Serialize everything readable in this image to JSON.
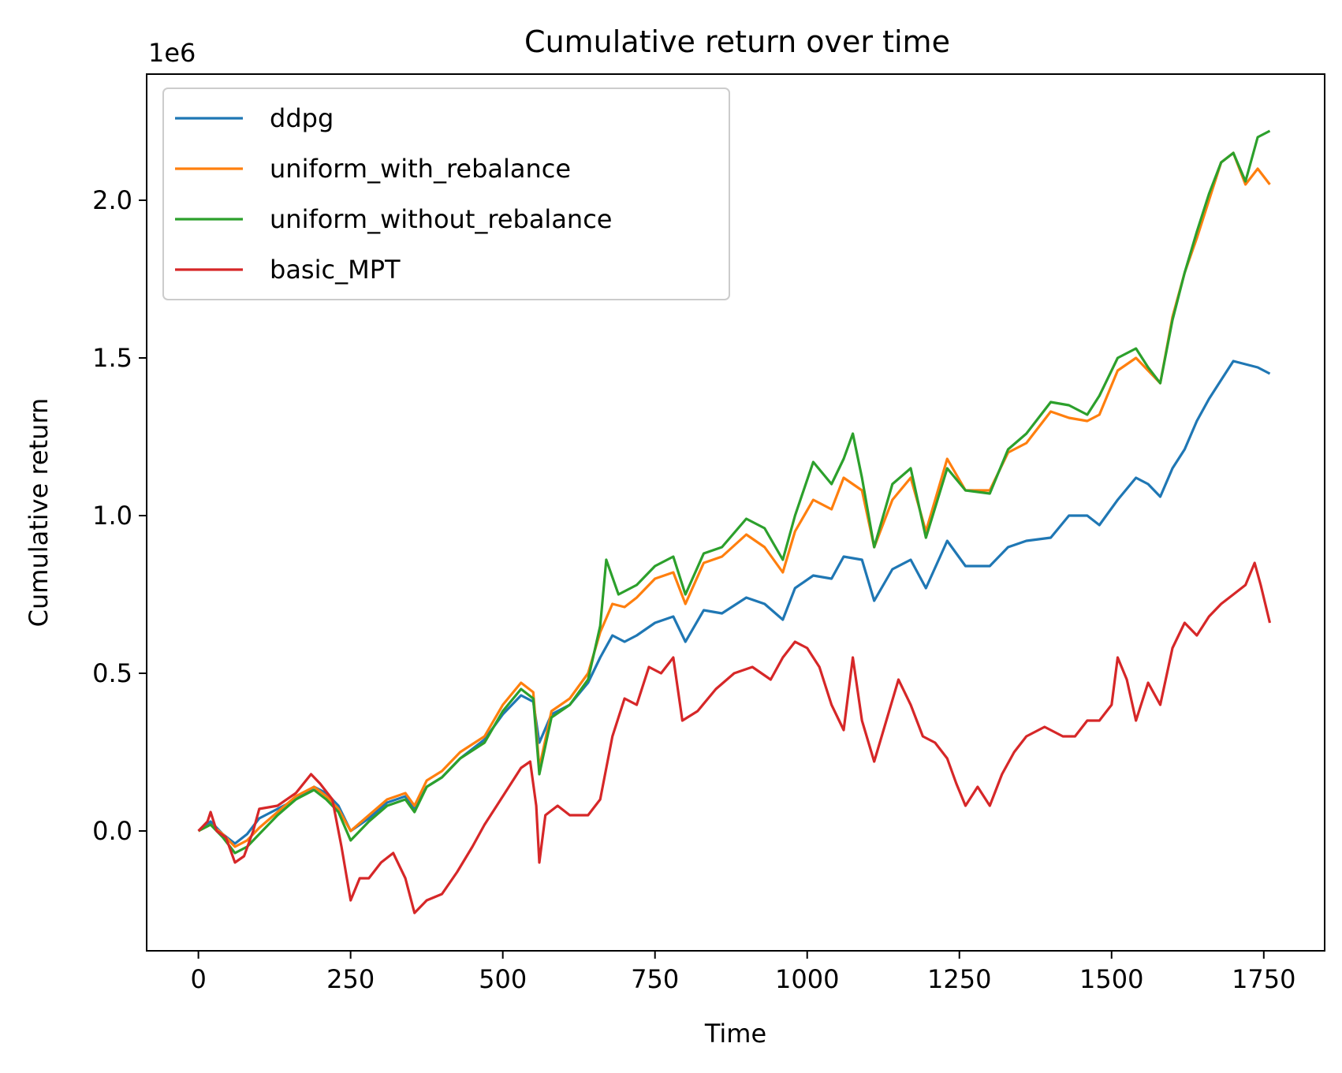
{
  "chart_data": {
    "type": "line",
    "title": "Cumulative return over time",
    "xlabel": "Time",
    "ylabel": "Cumulative return",
    "y_offset_text": "1e6",
    "xlim": [
      -85,
      1850
    ],
    "ylim": [
      -0.38,
      2.4
    ],
    "xticks": [
      0,
      250,
      500,
      750,
      1000,
      1250,
      1500,
      1750
    ],
    "yticks": [
      0.0,
      0.5,
      1.0,
      1.5,
      2.0
    ],
    "ytick_labels": [
      "0.0",
      "0.5",
      "1.0",
      "1.5",
      "2.0"
    ],
    "legend_position": "upper-left",
    "grid": false,
    "series": [
      {
        "name": "ddpg",
        "color": "#1f77b4",
        "points": [
          [
            0,
            0
          ],
          [
            20,
            0.03
          ],
          [
            40,
            -0.01
          ],
          [
            60,
            -0.04
          ],
          [
            80,
            -0.01
          ],
          [
            100,
            0.04
          ],
          [
            130,
            0.07
          ],
          [
            160,
            0.1
          ],
          [
            190,
            0.14
          ],
          [
            210,
            0.12
          ],
          [
            230,
            0.08
          ],
          [
            250,
            0.0
          ],
          [
            280,
            0.04
          ],
          [
            310,
            0.09
          ],
          [
            340,
            0.11
          ],
          [
            355,
            0.07
          ],
          [
            375,
            0.14
          ],
          [
            400,
            0.17
          ],
          [
            430,
            0.23
          ],
          [
            470,
            0.29
          ],
          [
            500,
            0.37
          ],
          [
            530,
            0.43
          ],
          [
            550,
            0.41
          ],
          [
            560,
            0.28
          ],
          [
            580,
            0.37
          ],
          [
            610,
            0.4
          ],
          [
            640,
            0.47
          ],
          [
            660,
            0.55
          ],
          [
            680,
            0.62
          ],
          [
            700,
            0.6
          ],
          [
            720,
            0.62
          ],
          [
            750,
            0.66
          ],
          [
            780,
            0.68
          ],
          [
            800,
            0.6
          ],
          [
            830,
            0.7
          ],
          [
            860,
            0.69
          ],
          [
            900,
            0.74
          ],
          [
            930,
            0.72
          ],
          [
            960,
            0.67
          ],
          [
            980,
            0.77
          ],
          [
            1010,
            0.81
          ],
          [
            1040,
            0.8
          ],
          [
            1060,
            0.87
          ],
          [
            1090,
            0.86
          ],
          [
            1110,
            0.73
          ],
          [
            1140,
            0.83
          ],
          [
            1170,
            0.86
          ],
          [
            1195,
            0.77
          ],
          [
            1230,
            0.92
          ],
          [
            1260,
            0.84
          ],
          [
            1300,
            0.84
          ],
          [
            1330,
            0.9
          ],
          [
            1360,
            0.92
          ],
          [
            1400,
            0.93
          ],
          [
            1430,
            1.0
          ],
          [
            1460,
            1.0
          ],
          [
            1480,
            0.97
          ],
          [
            1510,
            1.05
          ],
          [
            1540,
            1.12
          ],
          [
            1560,
            1.1
          ],
          [
            1580,
            1.06
          ],
          [
            1600,
            1.15
          ],
          [
            1620,
            1.21
          ],
          [
            1640,
            1.3
          ],
          [
            1660,
            1.37
          ],
          [
            1680,
            1.43
          ],
          [
            1700,
            1.49
          ],
          [
            1720,
            1.48
          ],
          [
            1740,
            1.47
          ],
          [
            1760,
            1.45
          ]
        ]
      },
      {
        "name": "uniform_with_rebalance",
        "color": "#ff7f0e",
        "points": [
          [
            0,
            0
          ],
          [
            20,
            0.02
          ],
          [
            40,
            -0.01
          ],
          [
            60,
            -0.05
          ],
          [
            80,
            -0.03
          ],
          [
            100,
            0.01
          ],
          [
            130,
            0.06
          ],
          [
            160,
            0.11
          ],
          [
            190,
            0.14
          ],
          [
            210,
            0.11
          ],
          [
            230,
            0.07
          ],
          [
            250,
            0.0
          ],
          [
            280,
            0.05
          ],
          [
            310,
            0.1
          ],
          [
            340,
            0.12
          ],
          [
            355,
            0.08
          ],
          [
            375,
            0.16
          ],
          [
            400,
            0.19
          ],
          [
            430,
            0.25
          ],
          [
            470,
            0.3
          ],
          [
            500,
            0.4
          ],
          [
            530,
            0.47
          ],
          [
            550,
            0.44
          ],
          [
            560,
            0.2
          ],
          [
            580,
            0.38
          ],
          [
            610,
            0.42
          ],
          [
            640,
            0.5
          ],
          [
            660,
            0.63
          ],
          [
            680,
            0.72
          ],
          [
            700,
            0.71
          ],
          [
            720,
            0.74
          ],
          [
            750,
            0.8
          ],
          [
            780,
            0.82
          ],
          [
            800,
            0.72
          ],
          [
            830,
            0.85
          ],
          [
            860,
            0.87
          ],
          [
            900,
            0.94
          ],
          [
            930,
            0.9
          ],
          [
            960,
            0.82
          ],
          [
            980,
            0.95
          ],
          [
            1010,
            1.05
          ],
          [
            1040,
            1.02
          ],
          [
            1060,
            1.12
          ],
          [
            1090,
            1.08
          ],
          [
            1110,
            0.9
          ],
          [
            1140,
            1.05
          ],
          [
            1170,
            1.12
          ],
          [
            1195,
            0.95
          ],
          [
            1230,
            1.18
          ],
          [
            1260,
            1.08
          ],
          [
            1300,
            1.08
          ],
          [
            1330,
            1.2
          ],
          [
            1360,
            1.23
          ],
          [
            1400,
            1.33
          ],
          [
            1430,
            1.31
          ],
          [
            1460,
            1.3
          ],
          [
            1480,
            1.32
          ],
          [
            1510,
            1.46
          ],
          [
            1540,
            1.5
          ],
          [
            1560,
            1.46
          ],
          [
            1580,
            1.42
          ],
          [
            1600,
            1.63
          ],
          [
            1620,
            1.77
          ],
          [
            1640,
            1.88
          ],
          [
            1660,
            2.0
          ],
          [
            1680,
            2.12
          ],
          [
            1700,
            2.15
          ],
          [
            1720,
            2.05
          ],
          [
            1740,
            2.1
          ],
          [
            1760,
            2.05
          ]
        ]
      },
      {
        "name": "uniform_without_rebalance",
        "color": "#2ca02c",
        "points": [
          [
            0,
            0
          ],
          [
            20,
            0.02
          ],
          [
            40,
            -0.02
          ],
          [
            60,
            -0.07
          ],
          [
            80,
            -0.05
          ],
          [
            100,
            -0.01
          ],
          [
            130,
            0.05
          ],
          [
            160,
            0.1
          ],
          [
            190,
            0.13
          ],
          [
            210,
            0.1
          ],
          [
            230,
            0.06
          ],
          [
            250,
            -0.03
          ],
          [
            280,
            0.03
          ],
          [
            310,
            0.08
          ],
          [
            340,
            0.1
          ],
          [
            355,
            0.06
          ],
          [
            375,
            0.14
          ],
          [
            400,
            0.17
          ],
          [
            430,
            0.23
          ],
          [
            470,
            0.28
          ],
          [
            500,
            0.38
          ],
          [
            530,
            0.45
          ],
          [
            550,
            0.42
          ],
          [
            560,
            0.18
          ],
          [
            580,
            0.36
          ],
          [
            610,
            0.4
          ],
          [
            640,
            0.48
          ],
          [
            660,
            0.65
          ],
          [
            670,
            0.86
          ],
          [
            690,
            0.75
          ],
          [
            720,
            0.78
          ],
          [
            750,
            0.84
          ],
          [
            780,
            0.87
          ],
          [
            800,
            0.75
          ],
          [
            830,
            0.88
          ],
          [
            860,
            0.9
          ],
          [
            900,
            0.99
          ],
          [
            930,
            0.96
          ],
          [
            960,
            0.86
          ],
          [
            980,
            1.0
          ],
          [
            1010,
            1.17
          ],
          [
            1040,
            1.1
          ],
          [
            1060,
            1.18
          ],
          [
            1075,
            1.26
          ],
          [
            1090,
            1.12
          ],
          [
            1110,
            0.9
          ],
          [
            1140,
            1.1
          ],
          [
            1170,
            1.15
          ],
          [
            1195,
            0.93
          ],
          [
            1230,
            1.15
          ],
          [
            1260,
            1.08
          ],
          [
            1300,
            1.07
          ],
          [
            1330,
            1.21
          ],
          [
            1360,
            1.26
          ],
          [
            1400,
            1.36
          ],
          [
            1430,
            1.35
          ],
          [
            1460,
            1.32
          ],
          [
            1480,
            1.38
          ],
          [
            1510,
            1.5
          ],
          [
            1540,
            1.53
          ],
          [
            1560,
            1.47
          ],
          [
            1580,
            1.42
          ],
          [
            1600,
            1.62
          ],
          [
            1620,
            1.77
          ],
          [
            1640,
            1.9
          ],
          [
            1660,
            2.02
          ],
          [
            1680,
            2.12
          ],
          [
            1700,
            2.15
          ],
          [
            1720,
            2.06
          ],
          [
            1740,
            2.2
          ],
          [
            1760,
            2.22
          ]
        ]
      },
      {
        "name": "basic_MPT",
        "color": "#d62728",
        "points": [
          [
            0,
            0
          ],
          [
            15,
            0.03
          ],
          [
            20,
            0.06
          ],
          [
            30,
            0.0
          ],
          [
            45,
            -0.02
          ],
          [
            60,
            -0.1
          ],
          [
            75,
            -0.08
          ],
          [
            90,
            0.0
          ],
          [
            100,
            0.07
          ],
          [
            130,
            0.08
          ],
          [
            160,
            0.12
          ],
          [
            185,
            0.18
          ],
          [
            200,
            0.15
          ],
          [
            220,
            0.1
          ],
          [
            235,
            -0.05
          ],
          [
            250,
            -0.22
          ],
          [
            265,
            -0.15
          ],
          [
            280,
            -0.15
          ],
          [
            300,
            -0.1
          ],
          [
            320,
            -0.07
          ],
          [
            340,
            -0.15
          ],
          [
            355,
            -0.26
          ],
          [
            375,
            -0.22
          ],
          [
            400,
            -0.2
          ],
          [
            425,
            -0.13
          ],
          [
            450,
            -0.05
          ],
          [
            470,
            0.02
          ],
          [
            490,
            0.08
          ],
          [
            510,
            0.14
          ],
          [
            530,
            0.2
          ],
          [
            545,
            0.22
          ],
          [
            555,
            0.08
          ],
          [
            560,
            -0.1
          ],
          [
            570,
            0.05
          ],
          [
            590,
            0.08
          ],
          [
            610,
            0.05
          ],
          [
            640,
            0.05
          ],
          [
            660,
            0.1
          ],
          [
            680,
            0.3
          ],
          [
            700,
            0.42
          ],
          [
            720,
            0.4
          ],
          [
            740,
            0.52
          ],
          [
            760,
            0.5
          ],
          [
            780,
            0.55
          ],
          [
            795,
            0.35
          ],
          [
            820,
            0.38
          ],
          [
            850,
            0.45
          ],
          [
            880,
            0.5
          ],
          [
            910,
            0.52
          ],
          [
            940,
            0.48
          ],
          [
            960,
            0.55
          ],
          [
            980,
            0.6
          ],
          [
            1000,
            0.58
          ],
          [
            1020,
            0.52
          ],
          [
            1040,
            0.4
          ],
          [
            1060,
            0.32
          ],
          [
            1075,
            0.55
          ],
          [
            1090,
            0.35
          ],
          [
            1110,
            0.22
          ],
          [
            1130,
            0.35
          ],
          [
            1150,
            0.48
          ],
          [
            1170,
            0.4
          ],
          [
            1190,
            0.3
          ],
          [
            1210,
            0.28
          ],
          [
            1230,
            0.23
          ],
          [
            1245,
            0.15
          ],
          [
            1260,
            0.08
          ],
          [
            1280,
            0.14
          ],
          [
            1300,
            0.08
          ],
          [
            1320,
            0.18
          ],
          [
            1340,
            0.25
          ],
          [
            1360,
            0.3
          ],
          [
            1390,
            0.33
          ],
          [
            1420,
            0.3
          ],
          [
            1440,
            0.3
          ],
          [
            1460,
            0.35
          ],
          [
            1480,
            0.35
          ],
          [
            1500,
            0.4
          ],
          [
            1510,
            0.55
          ],
          [
            1525,
            0.48
          ],
          [
            1540,
            0.35
          ],
          [
            1560,
            0.47
          ],
          [
            1580,
            0.4
          ],
          [
            1600,
            0.58
          ],
          [
            1620,
            0.66
          ],
          [
            1640,
            0.62
          ],
          [
            1660,
            0.68
          ],
          [
            1680,
            0.72
          ],
          [
            1700,
            0.75
          ],
          [
            1720,
            0.78
          ],
          [
            1735,
            0.85
          ],
          [
            1745,
            0.78
          ],
          [
            1760,
            0.66
          ]
        ]
      }
    ]
  }
}
